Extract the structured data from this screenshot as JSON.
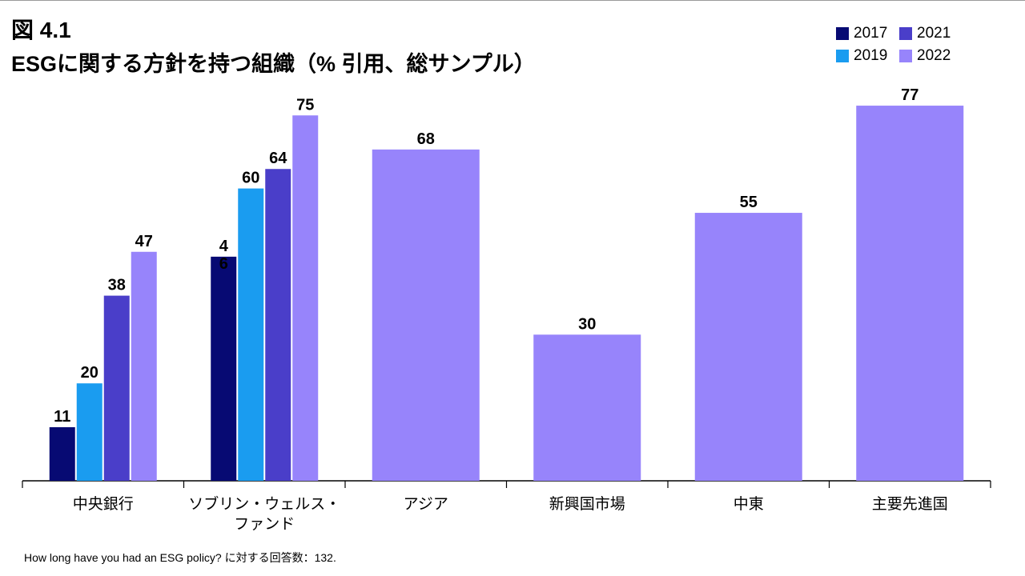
{
  "figure": {
    "label": "図 4.1",
    "title": "ESGに関する方針を持つ組織（% 引用、総サンプル）",
    "note": "How long have you had an ESG policy? に対する回答数：132."
  },
  "colors": {
    "2017": "#070a73",
    "2019": "#1a9cf0",
    "2021": "#4a3ec9",
    "2022": "#9784fb"
  },
  "legend": [
    {
      "name": "2017",
      "color": "#070a73"
    },
    {
      "name": "2021",
      "color": "#4a3ec9"
    },
    {
      "name": "2019",
      "color": "#1a9cf0"
    },
    {
      "name": "2022",
      "color": "#9784fb"
    }
  ],
  "chart_data": {
    "type": "bar",
    "title": "ESGに関する方針を持つ組織（% 引用、総サンプル）",
    "xlabel": "",
    "ylabel": "",
    "ylim": [
      0,
      80
    ],
    "grid": false,
    "legend_position": "top-right",
    "categories": [
      [
        "中央銀行"
      ],
      [
        "ソブリン・ウェルス・",
        "ファンド"
      ],
      [
        "アジア"
      ],
      [
        "新興国市場"
      ],
      [
        "中東"
      ],
      [
        "主要先進国"
      ]
    ],
    "series": [
      {
        "name": "2017",
        "values": [
          11,
          46,
          null,
          null,
          null,
          null
        ]
      },
      {
        "name": "2019",
        "values": [
          20,
          60,
          null,
          null,
          null,
          null
        ]
      },
      {
        "name": "2021",
        "values": [
          38,
          64,
          null,
          null,
          null,
          null
        ]
      },
      {
        "name": "2022",
        "values": [
          47,
          75,
          68,
          30,
          55,
          77
        ]
      }
    ],
    "value_labels": [
      [
        "11",
        "20",
        "38",
        "47"
      ],
      [
        "4\n6",
        "60",
        "64",
        "75"
      ],
      [
        "68"
      ],
      [
        "30"
      ],
      [
        "55"
      ],
      [
        "77"
      ]
    ]
  }
}
